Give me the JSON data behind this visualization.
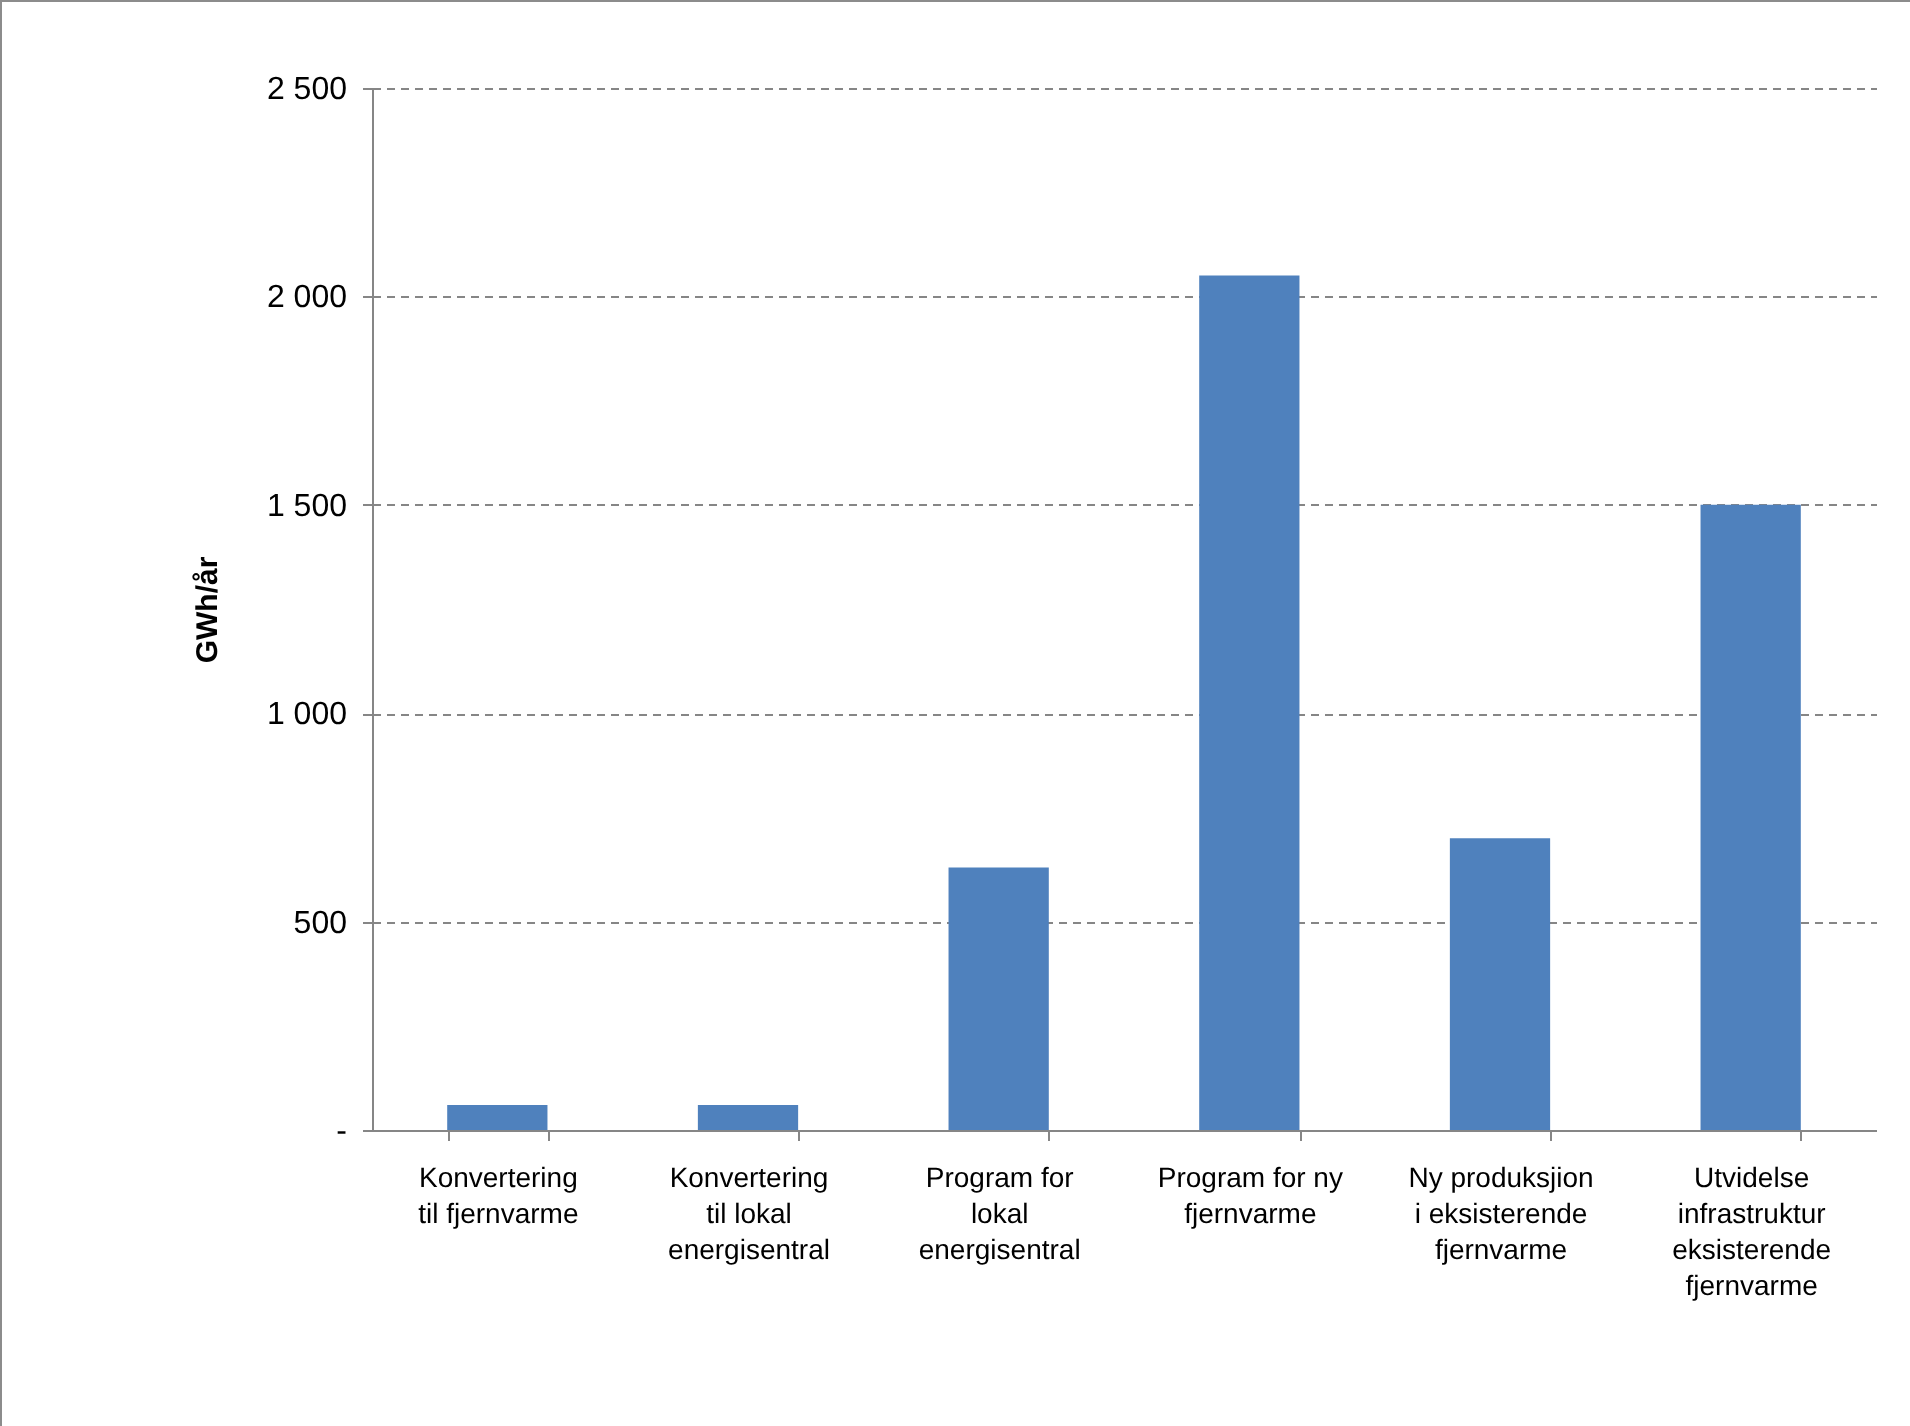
{
  "chart_data": {
    "type": "bar",
    "ylabel": "GWh/år",
    "categories": [
      "Konvertering til fjernvarme",
      "Konvertering til lokal energisentral",
      "Program for lokal energisentral",
      "Program for ny fjernvarme",
      "Ny produksjion i eksisterende fjernvarme",
      "Utvidelse infrastruktur eksisterende fjernvarme"
    ],
    "values": [
      60,
      60,
      630,
      2050,
      700,
      1500
    ],
    "color": "#4f81bd",
    "ylim": [
      0,
      2500
    ],
    "yticks": [
      {
        "value": 0,
        "label": "-"
      },
      500,
      {
        "value": 1000,
        "label": "1 000"
      },
      {
        "value": 1500,
        "label": "1 500"
      },
      {
        "value": 2000,
        "label": "2 000"
      },
      {
        "value": 2500,
        "label": "2 500"
      }
    ],
    "grid": "y"
  }
}
